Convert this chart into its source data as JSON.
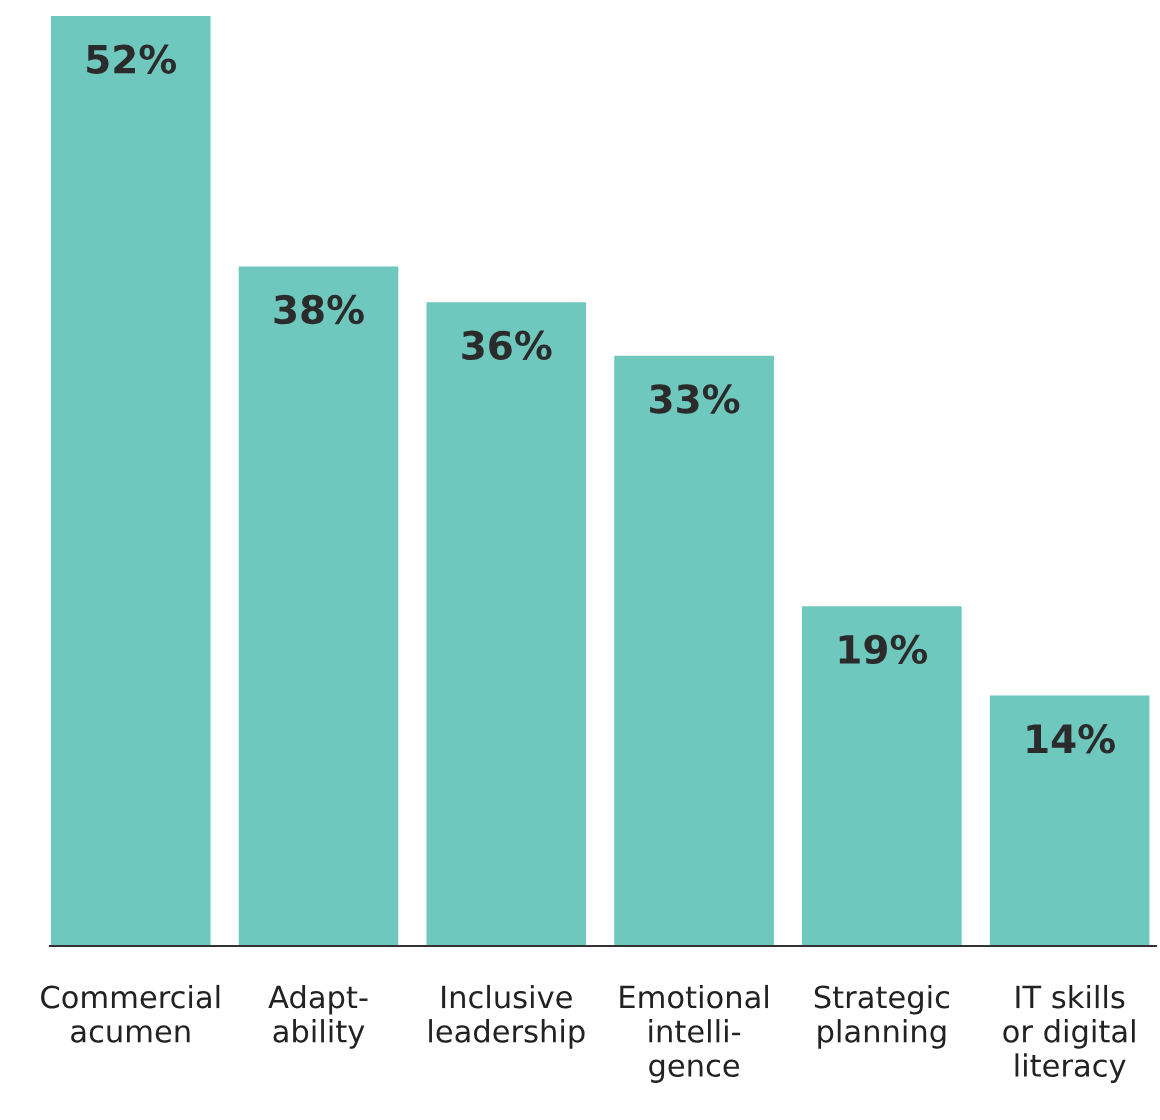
{
  "chart_data": {
    "type": "bar",
    "categories": [
      "Commercial\nacumen",
      "Adapt-\nability",
      "Inclusive\nleadership",
      "Emotional\nintelli-\ngence",
      "Strategic\nplanning",
      "IT skills\nor digital\nliteracy"
    ],
    "values": [
      52,
      38,
      36,
      33,
      19,
      14
    ],
    "color": "#6ec8bd",
    "value_labels": [
      "52%",
      "38%",
      "36%",
      "33%",
      "19%",
      "14%"
    ],
    "grid": false,
    "legend": false
  }
}
